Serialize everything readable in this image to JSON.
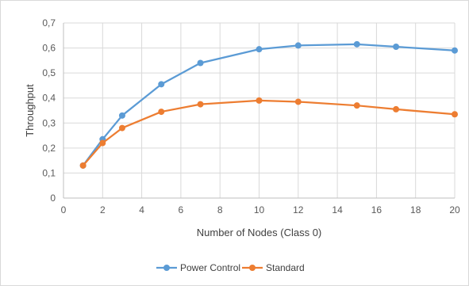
{
  "chart_data": {
    "type": "line",
    "xlabel": "Number of Nodes (Class 0)",
    "ylabel": "Throughput",
    "xlim": [
      0,
      20
    ],
    "ylim": [
      0,
      0.7
    ],
    "x_ticks": [
      "0",
      "2",
      "4",
      "6",
      "8",
      "10",
      "12",
      "14",
      "16",
      "18",
      "20"
    ],
    "y_ticks": [
      "0",
      "0,1",
      "0,2",
      "0,3",
      "0,4",
      "0,5",
      "0,6",
      "0,7"
    ],
    "grid": true,
    "legend_position": "bottom",
    "series": [
      {
        "name": "Power Control",
        "color": "#5b9bd5",
        "x": [
          1,
          2,
          3,
          5,
          7,
          10,
          12,
          15,
          17,
          20
        ],
        "y": [
          0.13,
          0.235,
          0.33,
          0.455,
          0.54,
          0.595,
          0.61,
          0.615,
          0.605,
          0.59
        ]
      },
      {
        "name": "Standard",
        "color": "#ed7d31",
        "x": [
          1,
          2,
          3,
          5,
          7,
          10,
          12,
          15,
          17,
          20
        ],
        "y": [
          0.13,
          0.22,
          0.28,
          0.345,
          0.375,
          0.39,
          0.385,
          0.37,
          0.355,
          0.335
        ]
      }
    ]
  }
}
